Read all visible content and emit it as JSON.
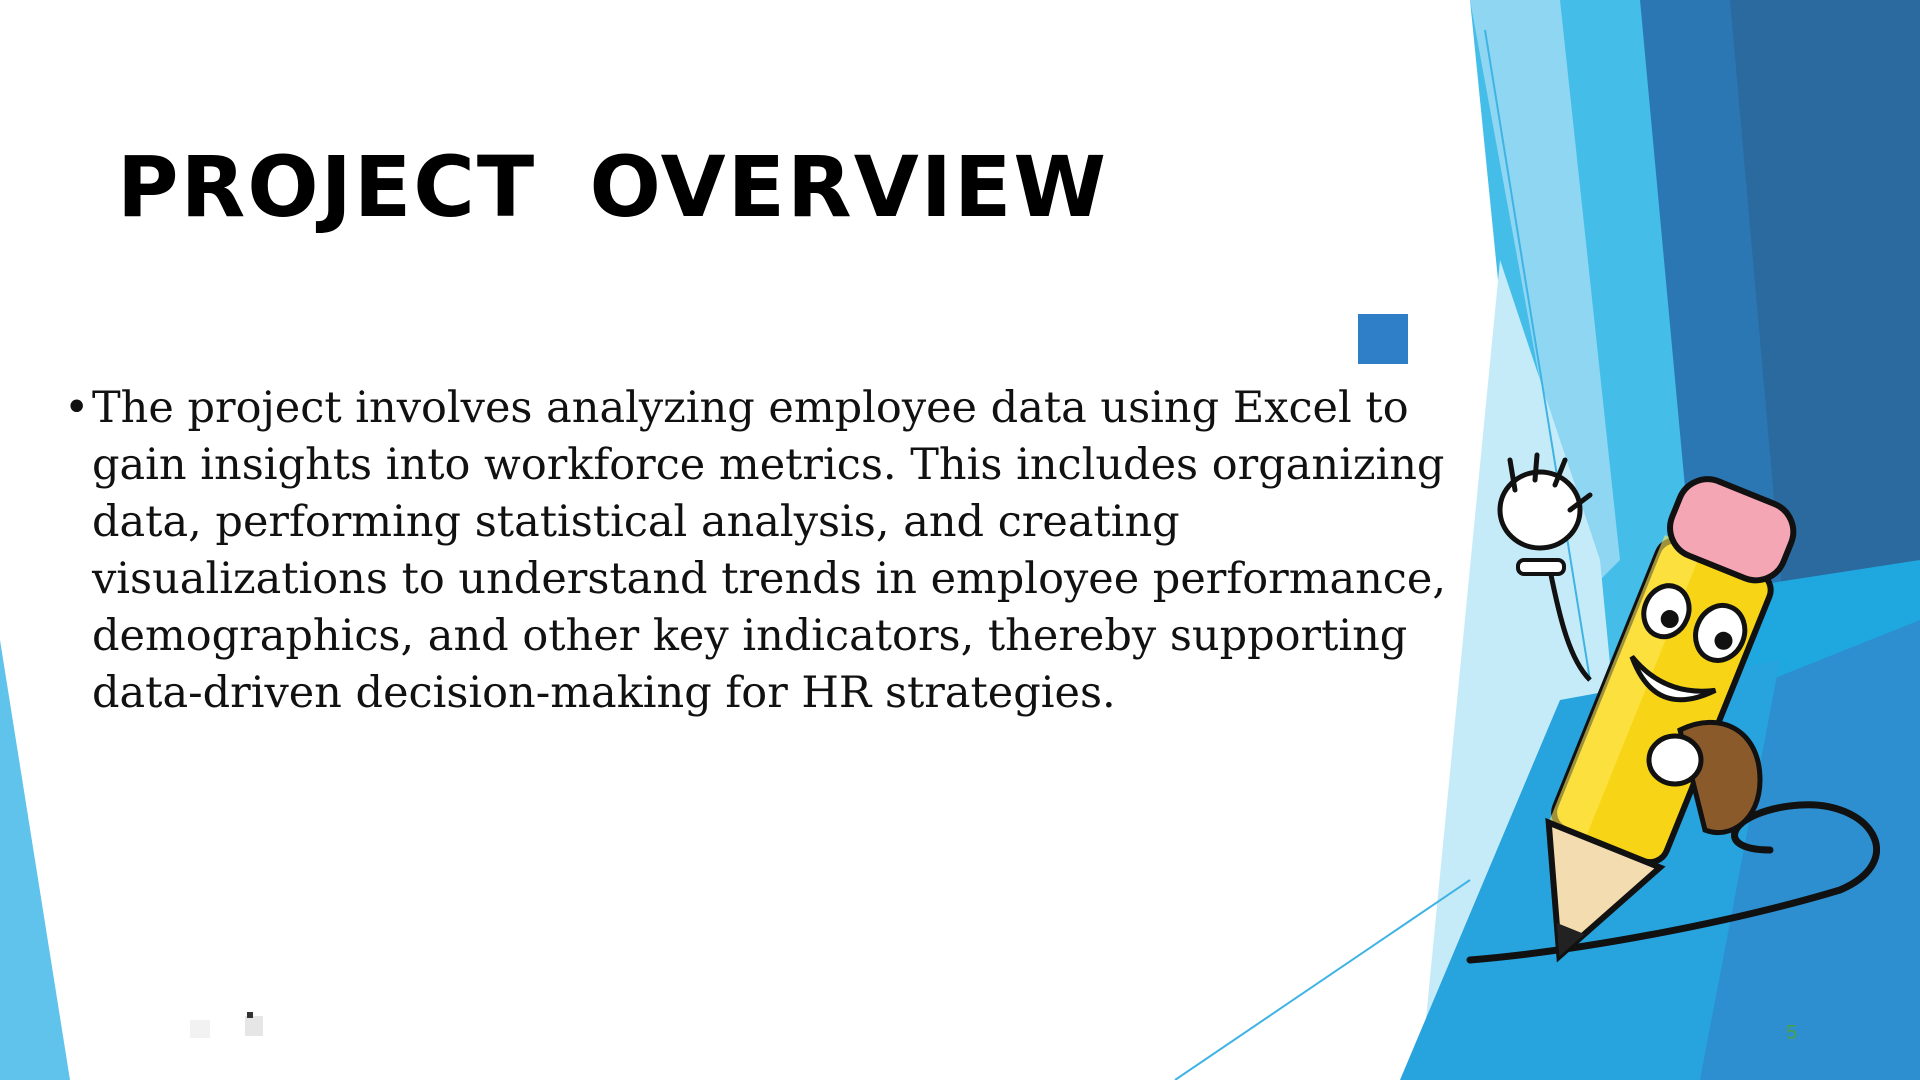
{
  "slide": {
    "title": "PROJECT  OVERVIEW",
    "bullets": [
      {
        "lines": [
          "The project involves analyzing employee data using Excel to",
          "gain insights into workforce metrics. This includes organizing",
          "data, performing statistical analysis, and creating",
          "visualizations to understand trends in employee performance,",
          "demographics, and other key indicators, thereby supporting",
          "data-driven decision-making for HR strategies."
        ]
      }
    ],
    "bullet_symbol": "•",
    "page_number": "5"
  },
  "colors": {
    "accent_light": "#5fc3eb",
    "accent_mid": "#2ea8df",
    "accent_dark": "#2a6a9e",
    "square": "#2e7fc8",
    "page_number": "#4aa04a"
  },
  "icons": {
    "mascot": "pencil-mascot-illustration",
    "square": "blue-square-decoration"
  }
}
